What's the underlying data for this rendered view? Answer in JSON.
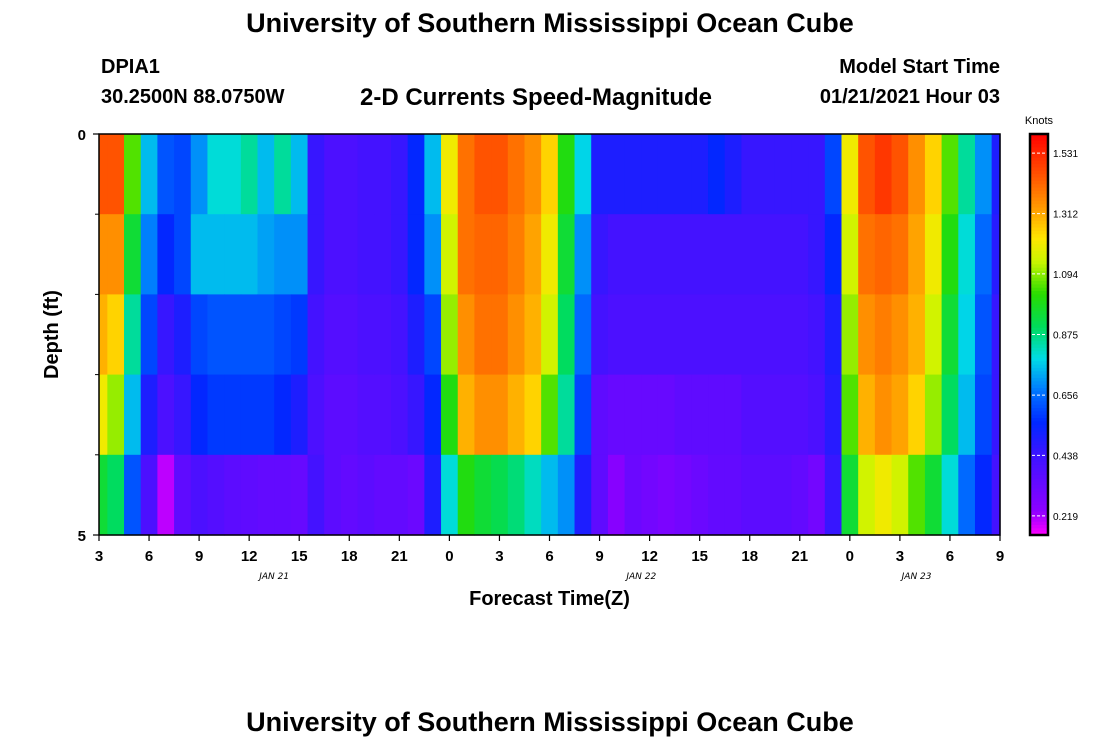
{
  "page": {
    "title": "University of Southern Mississippi Ocean Cube",
    "station": "DPIA1",
    "coordinates": "30.2500N 88.0750W",
    "subtitle": "2-D Currents Speed-Magnitude",
    "model_start_label": "Model Start Time",
    "model_start_value": "01/21/2021 Hour 03",
    "footer_title": "University of Southern Mississippi Ocean Cube"
  },
  "chart_data": {
    "type": "heatmap",
    "title": "2-D Currents Speed-Magnitude",
    "xlabel": "Forecast Time(Z)",
    "ylabel": "Depth (ft)",
    "x_start_hour": 3,
    "x_end_hour": 57,
    "x_ticks": [
      {
        "hour": 3,
        "label": "3"
      },
      {
        "hour": 6,
        "label": "6"
      },
      {
        "hour": 9,
        "label": "9"
      },
      {
        "hour": 12,
        "label": "12"
      },
      {
        "hour": 15,
        "label": "15"
      },
      {
        "hour": 18,
        "label": "18"
      },
      {
        "hour": 21,
        "label": "21"
      },
      {
        "hour": 24,
        "label": "0"
      },
      {
        "hour": 27,
        "label": "3"
      },
      {
        "hour": 30,
        "label": "6"
      },
      {
        "hour": 33,
        "label": "9"
      },
      {
        "hour": 36,
        "label": "12"
      },
      {
        "hour": 39,
        "label": "15"
      },
      {
        "hour": 42,
        "label": "18"
      },
      {
        "hour": 45,
        "label": "21"
      },
      {
        "hour": 48,
        "label": "0"
      },
      {
        "hour": 51,
        "label": "3"
      },
      {
        "hour": 54,
        "label": "6"
      },
      {
        "hour": 57,
        "label": "9"
      }
    ],
    "date_labels": [
      {
        "hour": 13.5,
        "label": "JAN 21"
      },
      {
        "hour": 35.5,
        "label": "JAN 22"
      },
      {
        "hour": 52,
        "label": "JAN 23"
      }
    ],
    "y_range": [
      0,
      5
    ],
    "y_ticks": [
      {
        "value": 0,
        "label": "0"
      },
      {
        "value": 5,
        "label": "5"
      }
    ],
    "y_minor_ticks": [
      1,
      2,
      3,
      4
    ],
    "depth_levels": 5,
    "colorbar": {
      "label": "Knots",
      "min": 0.15,
      "max": 1.6,
      "ticks": [
        0.219,
        0.438,
        0.656,
        0.875,
        1.094,
        1.312,
        1.531
      ],
      "tick_labels": [
        "0.219",
        "0.438",
        "0.656",
        "0.875",
        "1.094",
        "1.312",
        "1.531"
      ]
    },
    "series": [
      {
        "name": "0-1 ft",
        "points": [
          [
            3,
            1.45
          ],
          [
            4,
            1.45
          ],
          [
            5,
            1.05
          ],
          [
            6,
            0.75
          ],
          [
            7,
            0.62
          ],
          [
            8,
            0.6
          ],
          [
            9,
            0.7
          ],
          [
            10,
            0.8
          ],
          [
            11,
            0.8
          ],
          [
            12,
            0.85
          ],
          [
            13,
            0.75
          ],
          [
            14,
            0.85
          ],
          [
            15,
            0.75
          ],
          [
            16,
            0.45
          ],
          [
            17,
            0.4
          ],
          [
            18,
            0.4
          ],
          [
            19,
            0.42
          ],
          [
            20,
            0.42
          ],
          [
            21,
            0.45
          ],
          [
            22,
            0.55
          ],
          [
            23,
            0.75
          ],
          [
            24,
            1.2
          ],
          [
            25,
            1.4
          ],
          [
            26,
            1.45
          ],
          [
            27,
            1.45
          ],
          [
            28,
            1.4
          ],
          [
            29,
            1.35
          ],
          [
            30,
            1.25
          ],
          [
            31,
            1.0
          ],
          [
            32,
            0.78
          ],
          [
            33,
            0.5
          ],
          [
            34,
            0.5
          ],
          [
            35,
            0.5
          ],
          [
            36,
            0.5
          ],
          [
            37,
            0.5
          ],
          [
            38,
            0.5
          ],
          [
            39,
            0.5
          ],
          [
            40,
            0.55
          ],
          [
            41,
            0.5
          ],
          [
            42,
            0.45
          ],
          [
            43,
            0.45
          ],
          [
            44,
            0.45
          ],
          [
            45,
            0.45
          ],
          [
            46,
            0.45
          ],
          [
            47,
            0.6
          ],
          [
            48,
            1.2
          ],
          [
            49,
            1.45
          ],
          [
            50,
            1.5
          ],
          [
            51,
            1.45
          ],
          [
            52,
            1.35
          ],
          [
            53,
            1.25
          ],
          [
            54,
            1.05
          ],
          [
            55,
            0.85
          ],
          [
            56,
            0.7
          ],
          [
            57,
            0.5
          ]
        ]
      },
      {
        "name": "1-2 ft",
        "points": [
          [
            3,
            1.35
          ],
          [
            4,
            1.35
          ],
          [
            5,
            0.95
          ],
          [
            6,
            0.68
          ],
          [
            7,
            0.55
          ],
          [
            8,
            0.6
          ],
          [
            9,
            0.75
          ],
          [
            10,
            0.75
          ],
          [
            11,
            0.75
          ],
          [
            12,
            0.75
          ],
          [
            13,
            0.72
          ],
          [
            14,
            0.7
          ],
          [
            15,
            0.7
          ],
          [
            16,
            0.45
          ],
          [
            17,
            0.4
          ],
          [
            18,
            0.4
          ],
          [
            19,
            0.42
          ],
          [
            20,
            0.42
          ],
          [
            21,
            0.45
          ],
          [
            22,
            0.55
          ],
          [
            23,
            0.7
          ],
          [
            24,
            1.15
          ],
          [
            25,
            1.4
          ],
          [
            26,
            1.42
          ],
          [
            27,
            1.42
          ],
          [
            28,
            1.38
          ],
          [
            29,
            1.32
          ],
          [
            30,
            1.2
          ],
          [
            31,
            0.95
          ],
          [
            32,
            0.7
          ],
          [
            33,
            0.45
          ],
          [
            34,
            0.42
          ],
          [
            35,
            0.42
          ],
          [
            36,
            0.42
          ],
          [
            37,
            0.42
          ],
          [
            38,
            0.42
          ],
          [
            39,
            0.42
          ],
          [
            40,
            0.42
          ],
          [
            41,
            0.42
          ],
          [
            42,
            0.42
          ],
          [
            43,
            0.42
          ],
          [
            44,
            0.42
          ],
          [
            45,
            0.42
          ],
          [
            46,
            0.45
          ],
          [
            47,
            0.55
          ],
          [
            48,
            1.15
          ],
          [
            49,
            1.4
          ],
          [
            50,
            1.42
          ],
          [
            51,
            1.4
          ],
          [
            52,
            1.32
          ],
          [
            53,
            1.2
          ],
          [
            54,
            1.0
          ],
          [
            55,
            0.8
          ],
          [
            56,
            0.65
          ],
          [
            57,
            0.48
          ]
        ]
      },
      {
        "name": "2-3 ft",
        "points": [
          [
            3,
            1.3
          ],
          [
            4,
            1.25
          ],
          [
            5,
            0.85
          ],
          [
            6,
            0.6
          ],
          [
            7,
            0.45
          ],
          [
            8,
            0.5
          ],
          [
            9,
            0.6
          ],
          [
            10,
            0.62
          ],
          [
            11,
            0.62
          ],
          [
            12,
            0.62
          ],
          [
            13,
            0.62
          ],
          [
            14,
            0.6
          ],
          [
            15,
            0.58
          ],
          [
            16,
            0.42
          ],
          [
            17,
            0.38
          ],
          [
            18,
            0.38
          ],
          [
            19,
            0.4
          ],
          [
            20,
            0.4
          ],
          [
            21,
            0.42
          ],
          [
            22,
            0.5
          ],
          [
            23,
            0.6
          ],
          [
            24,
            1.1
          ],
          [
            25,
            1.35
          ],
          [
            26,
            1.4
          ],
          [
            27,
            1.4
          ],
          [
            28,
            1.35
          ],
          [
            29,
            1.3
          ],
          [
            30,
            1.15
          ],
          [
            31,
            0.9
          ],
          [
            32,
            0.65
          ],
          [
            33,
            0.42
          ],
          [
            34,
            0.4
          ],
          [
            35,
            0.4
          ],
          [
            36,
            0.4
          ],
          [
            37,
            0.4
          ],
          [
            38,
            0.4
          ],
          [
            39,
            0.4
          ],
          [
            40,
            0.4
          ],
          [
            41,
            0.4
          ],
          [
            42,
            0.4
          ],
          [
            43,
            0.4
          ],
          [
            44,
            0.4
          ],
          [
            45,
            0.4
          ],
          [
            46,
            0.42
          ],
          [
            47,
            0.5
          ],
          [
            48,
            1.1
          ],
          [
            49,
            1.35
          ],
          [
            50,
            1.38
          ],
          [
            51,
            1.35
          ],
          [
            52,
            1.3
          ],
          [
            53,
            1.15
          ],
          [
            54,
            0.95
          ],
          [
            55,
            0.78
          ],
          [
            56,
            0.62
          ],
          [
            57,
            0.45
          ]
        ]
      },
      {
        "name": "3-4 ft",
        "points": [
          [
            3,
            1.2
          ],
          [
            4,
            1.1
          ],
          [
            5,
            0.75
          ],
          [
            6,
            0.5
          ],
          [
            7,
            0.4
          ],
          [
            8,
            0.45
          ],
          [
            9,
            0.55
          ],
          [
            10,
            0.58
          ],
          [
            11,
            0.58
          ],
          [
            12,
            0.58
          ],
          [
            13,
            0.58
          ],
          [
            14,
            0.55
          ],
          [
            15,
            0.5
          ],
          [
            16,
            0.4
          ],
          [
            17,
            0.36
          ],
          [
            18,
            0.36
          ],
          [
            19,
            0.38
          ],
          [
            20,
            0.38
          ],
          [
            21,
            0.4
          ],
          [
            22,
            0.45
          ],
          [
            23,
            0.55
          ],
          [
            24,
            1.0
          ],
          [
            25,
            1.3
          ],
          [
            26,
            1.35
          ],
          [
            27,
            1.35
          ],
          [
            28,
            1.3
          ],
          [
            29,
            1.25
          ],
          [
            30,
            1.05
          ],
          [
            31,
            0.85
          ],
          [
            32,
            0.6
          ],
          [
            33,
            0.35
          ],
          [
            34,
            0.33
          ],
          [
            35,
            0.33
          ],
          [
            36,
            0.33
          ],
          [
            37,
            0.33
          ],
          [
            38,
            0.35
          ],
          [
            39,
            0.35
          ],
          [
            40,
            0.35
          ],
          [
            41,
            0.35
          ],
          [
            42,
            0.38
          ],
          [
            43,
            0.38
          ],
          [
            44,
            0.38
          ],
          [
            45,
            0.38
          ],
          [
            46,
            0.4
          ],
          [
            47,
            0.48
          ],
          [
            48,
            1.05
          ],
          [
            49,
            1.3
          ],
          [
            50,
            1.35
          ],
          [
            51,
            1.32
          ],
          [
            52,
            1.25
          ],
          [
            53,
            1.1
          ],
          [
            54,
            0.9
          ],
          [
            55,
            0.75
          ],
          [
            56,
            0.6
          ],
          [
            57,
            0.45
          ]
        ]
      },
      {
        "name": "4-5 ft",
        "points": [
          [
            3,
            0.95
          ],
          [
            4,
            0.9
          ],
          [
            5,
            0.62
          ],
          [
            6,
            0.4
          ],
          [
            7,
            0.2
          ],
          [
            8,
            0.35
          ],
          [
            9,
            0.4
          ],
          [
            10,
            0.38
          ],
          [
            11,
            0.36
          ],
          [
            12,
            0.35
          ],
          [
            13,
            0.34
          ],
          [
            14,
            0.34
          ],
          [
            15,
            0.33
          ],
          [
            16,
            0.42
          ],
          [
            17,
            0.36
          ],
          [
            18,
            0.34
          ],
          [
            19,
            0.36
          ],
          [
            20,
            0.34
          ],
          [
            21,
            0.34
          ],
          [
            22,
            0.32
          ],
          [
            23,
            0.5
          ],
          [
            24,
            0.8
          ],
          [
            25,
            1.0
          ],
          [
            26,
            0.95
          ],
          [
            27,
            0.92
          ],
          [
            28,
            0.88
          ],
          [
            29,
            0.82
          ],
          [
            30,
            0.75
          ],
          [
            31,
            0.7
          ],
          [
            32,
            0.5
          ],
          [
            33,
            0.35
          ],
          [
            34,
            0.25
          ],
          [
            35,
            0.32
          ],
          [
            36,
            0.3
          ],
          [
            37,
            0.28
          ],
          [
            38,
            0.3
          ],
          [
            39,
            0.32
          ],
          [
            40,
            0.34
          ],
          [
            41,
            0.34
          ],
          [
            42,
            0.36
          ],
          [
            43,
            0.36
          ],
          [
            44,
            0.36
          ],
          [
            45,
            0.34
          ],
          [
            46,
            0.3
          ],
          [
            47,
            0.45
          ],
          [
            48,
            0.95
          ],
          [
            49,
            1.15
          ],
          [
            50,
            1.2
          ],
          [
            51,
            1.15
          ],
          [
            52,
            1.05
          ],
          [
            53,
            0.95
          ],
          [
            54,
            0.8
          ],
          [
            55,
            0.65
          ],
          [
            56,
            0.55
          ],
          [
            57,
            0.42
          ]
        ]
      }
    ]
  }
}
